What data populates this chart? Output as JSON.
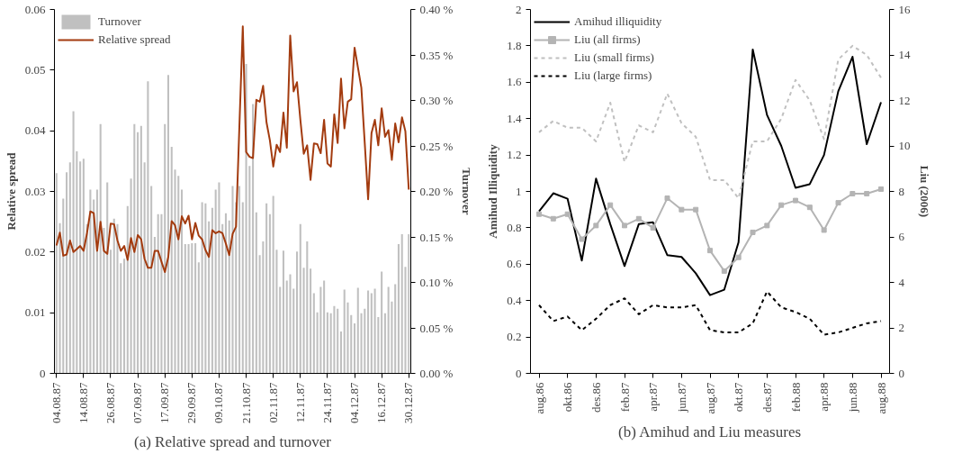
{
  "chart_data": [
    {
      "type": "line",
      "annotations": [
        "(a) Relative spread and turnover"
      ],
      "ylabel": "Relative spread",
      "y2label": "Turnover",
      "categories": [
        "04.08.87",
        null,
        null,
        null,
        null,
        null,
        null,
        null,
        "14.08.87",
        null,
        null,
        null,
        null,
        null,
        null,
        null,
        "26.08.87",
        null,
        null,
        null,
        null,
        null,
        null,
        null,
        "07.09.87",
        null,
        null,
        null,
        null,
        null,
        null,
        null,
        "17.09.87",
        null,
        null,
        null,
        null,
        null,
        null,
        null,
        "29.09.87",
        null,
        null,
        null,
        null,
        null,
        null,
        null,
        "09.10.87",
        null,
        null,
        null,
        null,
        null,
        null,
        null,
        "21.10.87",
        null,
        null,
        null,
        null,
        null,
        null,
        null,
        "02.11.87",
        null,
        null,
        null,
        null,
        null,
        null,
        null,
        "12.11.87",
        null,
        null,
        null,
        null,
        null,
        null,
        null,
        "24.11.87",
        null,
        null,
        null,
        null,
        null,
        null,
        null,
        "04.12.87",
        null,
        null,
        null,
        null,
        null,
        null,
        null,
        "16.12.87",
        null,
        null,
        null,
        null,
        null,
        null,
        null,
        "30.12.87"
      ],
      "ylim": [
        0,
        0.06
      ],
      "yticks": [
        0,
        0.01,
        0.02,
        0.03,
        0.04,
        0.05,
        0.06
      ],
      "y2lim": [
        0,
        0.4
      ],
      "y2ticks": [
        {
          "value": 0,
          "label": "0.00 %"
        },
        {
          "value": 0.05,
          "label": "0.05 %"
        },
        {
          "value": 0.1,
          "label": "0.10 %"
        },
        {
          "value": 0.15,
          "label": "0.15 %"
        },
        {
          "value": 0.2,
          "label": "0.20 %"
        },
        {
          "value": 0.25,
          "label": "0.25 %"
        },
        {
          "value": 0.3,
          "label": "0.30 %"
        },
        {
          "value": 0.35,
          "label": "0.35 %"
        },
        {
          "value": 0.4,
          "label": "0.40 %"
        }
      ],
      "grid": false,
      "legend": "top left",
      "series": [
        {
          "name": "Turnover",
          "type": "bar",
          "axis": "y2",
          "color": "#c0c0c0",
          "values": [
            0.22,
            0.165,
            0.192,
            0.221,
            0.232,
            0.288,
            0.244,
            0.233,
            0.236,
            0.164,
            0.202,
            0.191,
            0.202,
            0.274,
            0.16,
            0.21,
            0.136,
            0.17,
            0.164,
            0.121,
            0.126,
            0.184,
            0.214,
            0.274,
            0.265,
            0.272,
            0.232,
            0.321,
            0.206,
            0.15,
            0.175,
            0.175,
            0.274,
            0.328,
            0.249,
            0.224,
            0.217,
            0.202,
            0.142,
            0.142,
            0.143,
            0.143,
            0.122,
            0.188,
            0.187,
            0.167,
            0.182,
            0.202,
            0.21,
            0.164,
            0.176,
            0.168,
            0.206,
            0.188,
            0.206,
            0.188,
            0.34,
            0.228,
            0.296,
            0.177,
            0.13,
            0.145,
            0.187,
            0.175,
            0.195,
            0.136,
            0.095,
            0.135,
            0.102,
            0.109,
            0.093,
            0.134,
            0.164,
            0.116,
            0.145,
            0.115,
            0.088,
            0.067,
            0.095,
            0.102,
            0.067,
            0.066,
            0.074,
            0.071,
            0.046,
            0.092,
            0.078,
            0.064,
            0.055,
            0.094,
            0.066,
            0.071,
            0.091,
            0.088,
            0.093,
            0.062,
            0.112,
            0.066,
            0.095,
            0.079,
            0.098,
            0.142,
            0.153,
            0.117,
            0.153
          ]
        },
        {
          "name": "Relative spread",
          "type": "line",
          "color": "#a33b0f",
          "line_style": "solid",
          "values": [
            0.0211,
            0.0232,
            0.0194,
            0.0196,
            0.0219,
            0.02,
            0.0205,
            0.021,
            0.0202,
            0.0231,
            0.0267,
            0.0264,
            0.0202,
            0.025,
            0.0202,
            0.0197,
            0.0247,
            0.0246,
            0.0219,
            0.0202,
            0.021,
            0.0187,
            0.0223,
            0.02,
            0.0228,
            0.0221,
            0.0189,
            0.0174,
            0.0174,
            0.0202,
            0.0202,
            0.0184,
            0.0167,
            0.0192,
            0.0251,
            0.0244,
            0.0221,
            0.0259,
            0.0247,
            0.026,
            0.0221,
            0.0248,
            0.0227,
            0.0221,
            0.0203,
            0.0192,
            0.0236,
            0.0231,
            0.0234,
            0.0231,
            0.0214,
            0.0195,
            0.023,
            0.0242,
            0.0408,
            0.0572,
            0.0365,
            0.0357,
            0.0355,
            0.0451,
            0.0448,
            0.0474,
            0.0414,
            0.0384,
            0.0341,
            0.0377,
            0.0365,
            0.043,
            0.0372,
            0.0557,
            0.0465,
            0.048,
            0.0418,
            0.0362,
            0.0376,
            0.0319,
            0.0379,
            0.0378,
            0.0363,
            0.0418,
            0.0346,
            0.0341,
            0.0427,
            0.038,
            0.0486,
            0.0404,
            0.0448,
            0.0452,
            0.0537,
            0.0504,
            0.0471,
            0.038,
            0.0287,
            0.0396,
            0.0418,
            0.0376,
            0.0437,
            0.039,
            0.0401,
            0.0352,
            0.0412,
            0.0381,
            0.0422,
            0.0399,
            0.0303
          ]
        }
      ]
    },
    {
      "type": "line",
      "annotations": [
        "(b) Amihud and Liu measures"
      ],
      "ylabel": "Amihud Illiquidity",
      "y2label": "Liu (2006)",
      "categories": [
        "aug.86",
        null,
        "okt.86",
        null,
        "des.86",
        null,
        "feb.87",
        null,
        "apr.87",
        null,
        "jun.87",
        null,
        "aug.87",
        null,
        "okt.87",
        null,
        "des.87",
        null,
        "feb.88",
        null,
        "apr.88",
        null,
        "jun.88",
        null,
        "aug.88"
      ],
      "ylim": [
        0,
        2
      ],
      "yticks": [
        0,
        0.2,
        0.4,
        0.6,
        0.8,
        1,
        1.2,
        1.4,
        1.6,
        1.8,
        2
      ],
      "y2lim": [
        0,
        16
      ],
      "y2ticks": [
        0,
        2,
        4,
        6,
        8,
        10,
        12,
        14,
        16
      ],
      "grid": false,
      "legend": "top left",
      "series": [
        {
          "name": "Amihud illiquidity",
          "color": "#000000",
          "line_style": "solid",
          "values": [
            0.89,
            0.99,
            0.96,
            0.62,
            1.07,
            0.82,
            0.59,
            0.82,
            0.83,
            0.65,
            0.64,
            0.55,
            0.43,
            0.46,
            0.72,
            1.78,
            1.42,
            1.25,
            1.02,
            1.04,
            1.2,
            1.55,
            1.74,
            1.26,
            1.49
          ]
        },
        {
          "name": "Liu (all firms)",
          "axis": "y2",
          "color": "#b4b4b4",
          "line_style": "solid",
          "marker": "square",
          "values": [
            7.0,
            6.8,
            7.0,
            5.9,
            6.5,
            7.4,
            6.5,
            6.8,
            6.4,
            7.7,
            7.2,
            7.2,
            5.4,
            4.5,
            5.1,
            6.2,
            6.5,
            7.4,
            7.6,
            7.3,
            6.3,
            7.5,
            7.9,
            7.9,
            8.1
          ]
        },
        {
          "name": "Liu (small firms)",
          "axis": "y2",
          "color": "#c0c0c0",
          "line_style": "dashed",
          "values": [
            10.6,
            11.1,
            10.8,
            10.8,
            10.2,
            11.9,
            9.3,
            10.9,
            10.6,
            12.3,
            11.0,
            10.4,
            8.5,
            8.5,
            7.7,
            10.2,
            10.2,
            11.2,
            12.9,
            12.0,
            10.3,
            13.8,
            14.4,
            14.0,
            13.0
          ]
        },
        {
          "name": "Liu (large firms)",
          "axis": "y2",
          "color": "#000000",
          "line_style": "dashed",
          "values": [
            3.0,
            2.3,
            2.5,
            1.9,
            2.4,
            3.0,
            3.3,
            2.6,
            3.0,
            2.9,
            2.9,
            3.0,
            1.9,
            1.8,
            1.8,
            2.2,
            3.6,
            2.9,
            2.7,
            2.4,
            1.7,
            1.8,
            2.0,
            2.2,
            2.3
          ]
        }
      ]
    }
  ]
}
